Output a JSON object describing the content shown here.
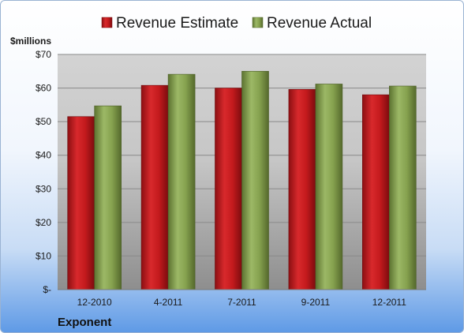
{
  "chart_data": {
    "type": "bar",
    "title": "",
    "unit_label": "$millions",
    "company": "Exponent",
    "categories": [
      "12-2010",
      "4-2011",
      "7-2011",
      "9-2011",
      "12-2011"
    ],
    "series": [
      {
        "name": "Revenue Estimate",
        "color": "#c0161a",
        "values": [
          51.5,
          60.8,
          60.0,
          59.6,
          58.0
        ]
      },
      {
        "name": "Revenue Actual",
        "color": "#7e9a45",
        "values": [
          54.7,
          64.1,
          65.0,
          61.2,
          60.6
        ]
      }
    ],
    "ylim": [
      0,
      70
    ],
    "yticks": [
      0,
      10,
      20,
      30,
      40,
      50,
      60,
      70
    ],
    "ytick_labels": [
      "$-",
      "$10",
      "$20",
      "$30",
      "$40",
      "$50",
      "$60",
      "$70"
    ],
    "grid": true,
    "legend_position": "top"
  }
}
